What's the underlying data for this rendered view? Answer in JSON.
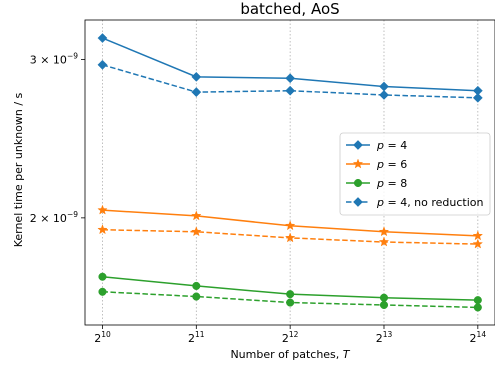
{
  "chart_data": {
    "type": "line",
    "title": "batched, AoS",
    "xlabel": "Number of patches, ",
    "xlabel_var": "T",
    "ylabel": "Kernel time per unknown / s",
    "x_scale": "log2",
    "y_scale": "log",
    "x": [
      1024,
      2048,
      4096,
      8192,
      16384
    ],
    "x_tick_labels": [
      {
        "base": "2",
        "exp": "10"
      },
      {
        "base": "2",
        "exp": "11"
      },
      {
        "base": "2",
        "exp": "12"
      },
      {
        "base": "2",
        "exp": "13"
      },
      {
        "base": "2",
        "exp": "14"
      }
    ],
    "y_tick_labels": [
      {
        "value": 3e-09,
        "mantissa": "3 × 10",
        "exp": "−9"
      },
      {
        "value": 2e-09,
        "mantissa": "2 × 10",
        "exp": "−9"
      }
    ],
    "ylim": [
      1.52e-09,
      3.32e-09
    ],
    "xlim": [
      900,
      18600
    ],
    "grid": "vertical dotted at x ticks",
    "legend_position": "center-right",
    "series": [
      {
        "name": "p = 4",
        "legend_var": "p",
        "legend_rest": " = 4",
        "color": "#1f77b4",
        "marker": "diamond",
        "linestyle": "solid",
        "values": [
          3.17e-09,
          2.87e-09,
          2.86e-09,
          2.8e-09,
          2.77e-09
        ]
      },
      {
        "name": "p = 4, no reduction",
        "legend_var": "p",
        "legend_rest": " = 4, no reduction",
        "color": "#1f77b4",
        "marker": "diamond",
        "linestyle": "dashed",
        "values": [
          2.96e-09,
          2.76e-09,
          2.77e-09,
          2.74e-09,
          2.72e-09
        ]
      },
      {
        "name": "p = 6",
        "legend_var": "p",
        "legend_rest": " = 6",
        "color": "#ff7f0e",
        "marker": "star",
        "linestyle": "solid",
        "values": [
          2.04e-09,
          2.01e-09,
          1.96e-09,
          1.93e-09,
          1.91e-09
        ]
      },
      {
        "name": "p = 6",
        "legend_var": "",
        "legend_rest": "",
        "color": "#ff7f0e",
        "marker": "star",
        "linestyle": "dashed",
        "values": [
          1.94e-09,
          1.93e-09,
          1.9e-09,
          1.88e-09,
          1.87e-09
        ]
      },
      {
        "name": "p = 8",
        "legend_var": "p",
        "legend_rest": " = 8",
        "color": "#2ca02c",
        "marker": "circle",
        "linestyle": "solid",
        "values": [
          1.72e-09,
          1.68e-09,
          1.645e-09,
          1.63e-09,
          1.62e-09
        ]
      },
      {
        "name": "p = 8",
        "legend_var": "",
        "legend_rest": "",
        "color": "#2ca02c",
        "marker": "circle",
        "linestyle": "dashed",
        "values": [
          1.655e-09,
          1.635e-09,
          1.61e-09,
          1.6e-09,
          1.59e-09
        ]
      }
    ],
    "legend_order": [
      0,
      2,
      4,
      1
    ]
  }
}
